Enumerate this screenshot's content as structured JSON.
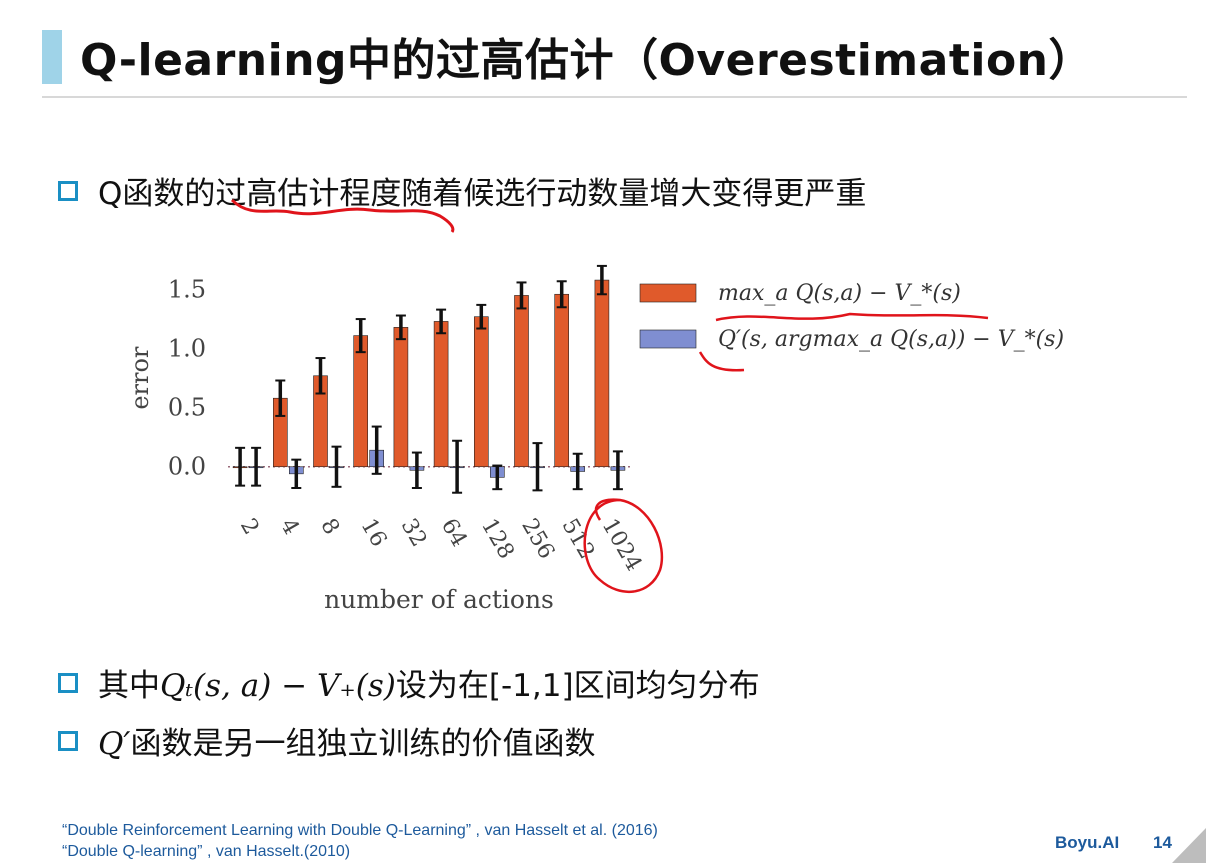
{
  "slide": {
    "title": "Q-learning中的过高估计（Overestimation）",
    "bullets": [
      {
        "text": "Q函数的过高估计程度随着候选行动数量增大变得更严重"
      },
      {
        "prefix": "其中",
        "math": "Qₜ(s, a) − V₊(s)",
        "suffix": "设为在[-1,1]区间均匀分布"
      },
      {
        "math": "Q′",
        "suffix": "函数是另一组独立训练的价值函数"
      }
    ],
    "references": [
      "“Double Reinforcement Learning with Double Q-Learning” , van Hasselt et al. (2016)",
      "“Double Q-learning” , van Hasselt.(2010)"
    ],
    "brand": "Boyu.AI",
    "page_number": "14"
  },
  "colors": {
    "accent": "#1a8fc4",
    "title_bar": "#9fd3e8",
    "series_red": "#e05a2b",
    "series_blue": "#7f8ed1",
    "annotation_red": "#e0141b",
    "ref_blue": "#1d5a9c"
  },
  "chart_data": {
    "type": "bar",
    "categories": [
      "2",
      "4",
      "8",
      "16",
      "32",
      "64",
      "128",
      "256",
      "512",
      "1024"
    ],
    "series": [
      {
        "name": "max_a Q(s,a) − V_*(s)",
        "values": [
          0.0,
          0.58,
          0.77,
          1.11,
          1.18,
          1.23,
          1.27,
          1.45,
          1.46,
          1.58
        ],
        "errors": [
          0.16,
          0.15,
          0.15,
          0.14,
          0.1,
          0.1,
          0.1,
          0.11,
          0.11,
          0.12
        ]
      },
      {
        "name": "Q′(s, argmax_a Q(s,a)) − V_*(s)",
        "values": [
          0.0,
          -0.06,
          0.0,
          0.14,
          -0.03,
          0.0,
          -0.09,
          0.0,
          -0.04,
          -0.03
        ],
        "errors": [
          0.16,
          0.12,
          0.17,
          0.2,
          0.15,
          0.22,
          0.1,
          0.2,
          0.15,
          0.16
        ]
      }
    ],
    "title": "",
    "xlabel": "number of actions",
    "ylabel": "error",
    "yticks": [
      "0.0",
      "0.5",
      "1.0",
      "1.5"
    ],
    "ylim": [
      -0.18,
      1.75
    ],
    "grid": false,
    "legend_position": "right"
  }
}
